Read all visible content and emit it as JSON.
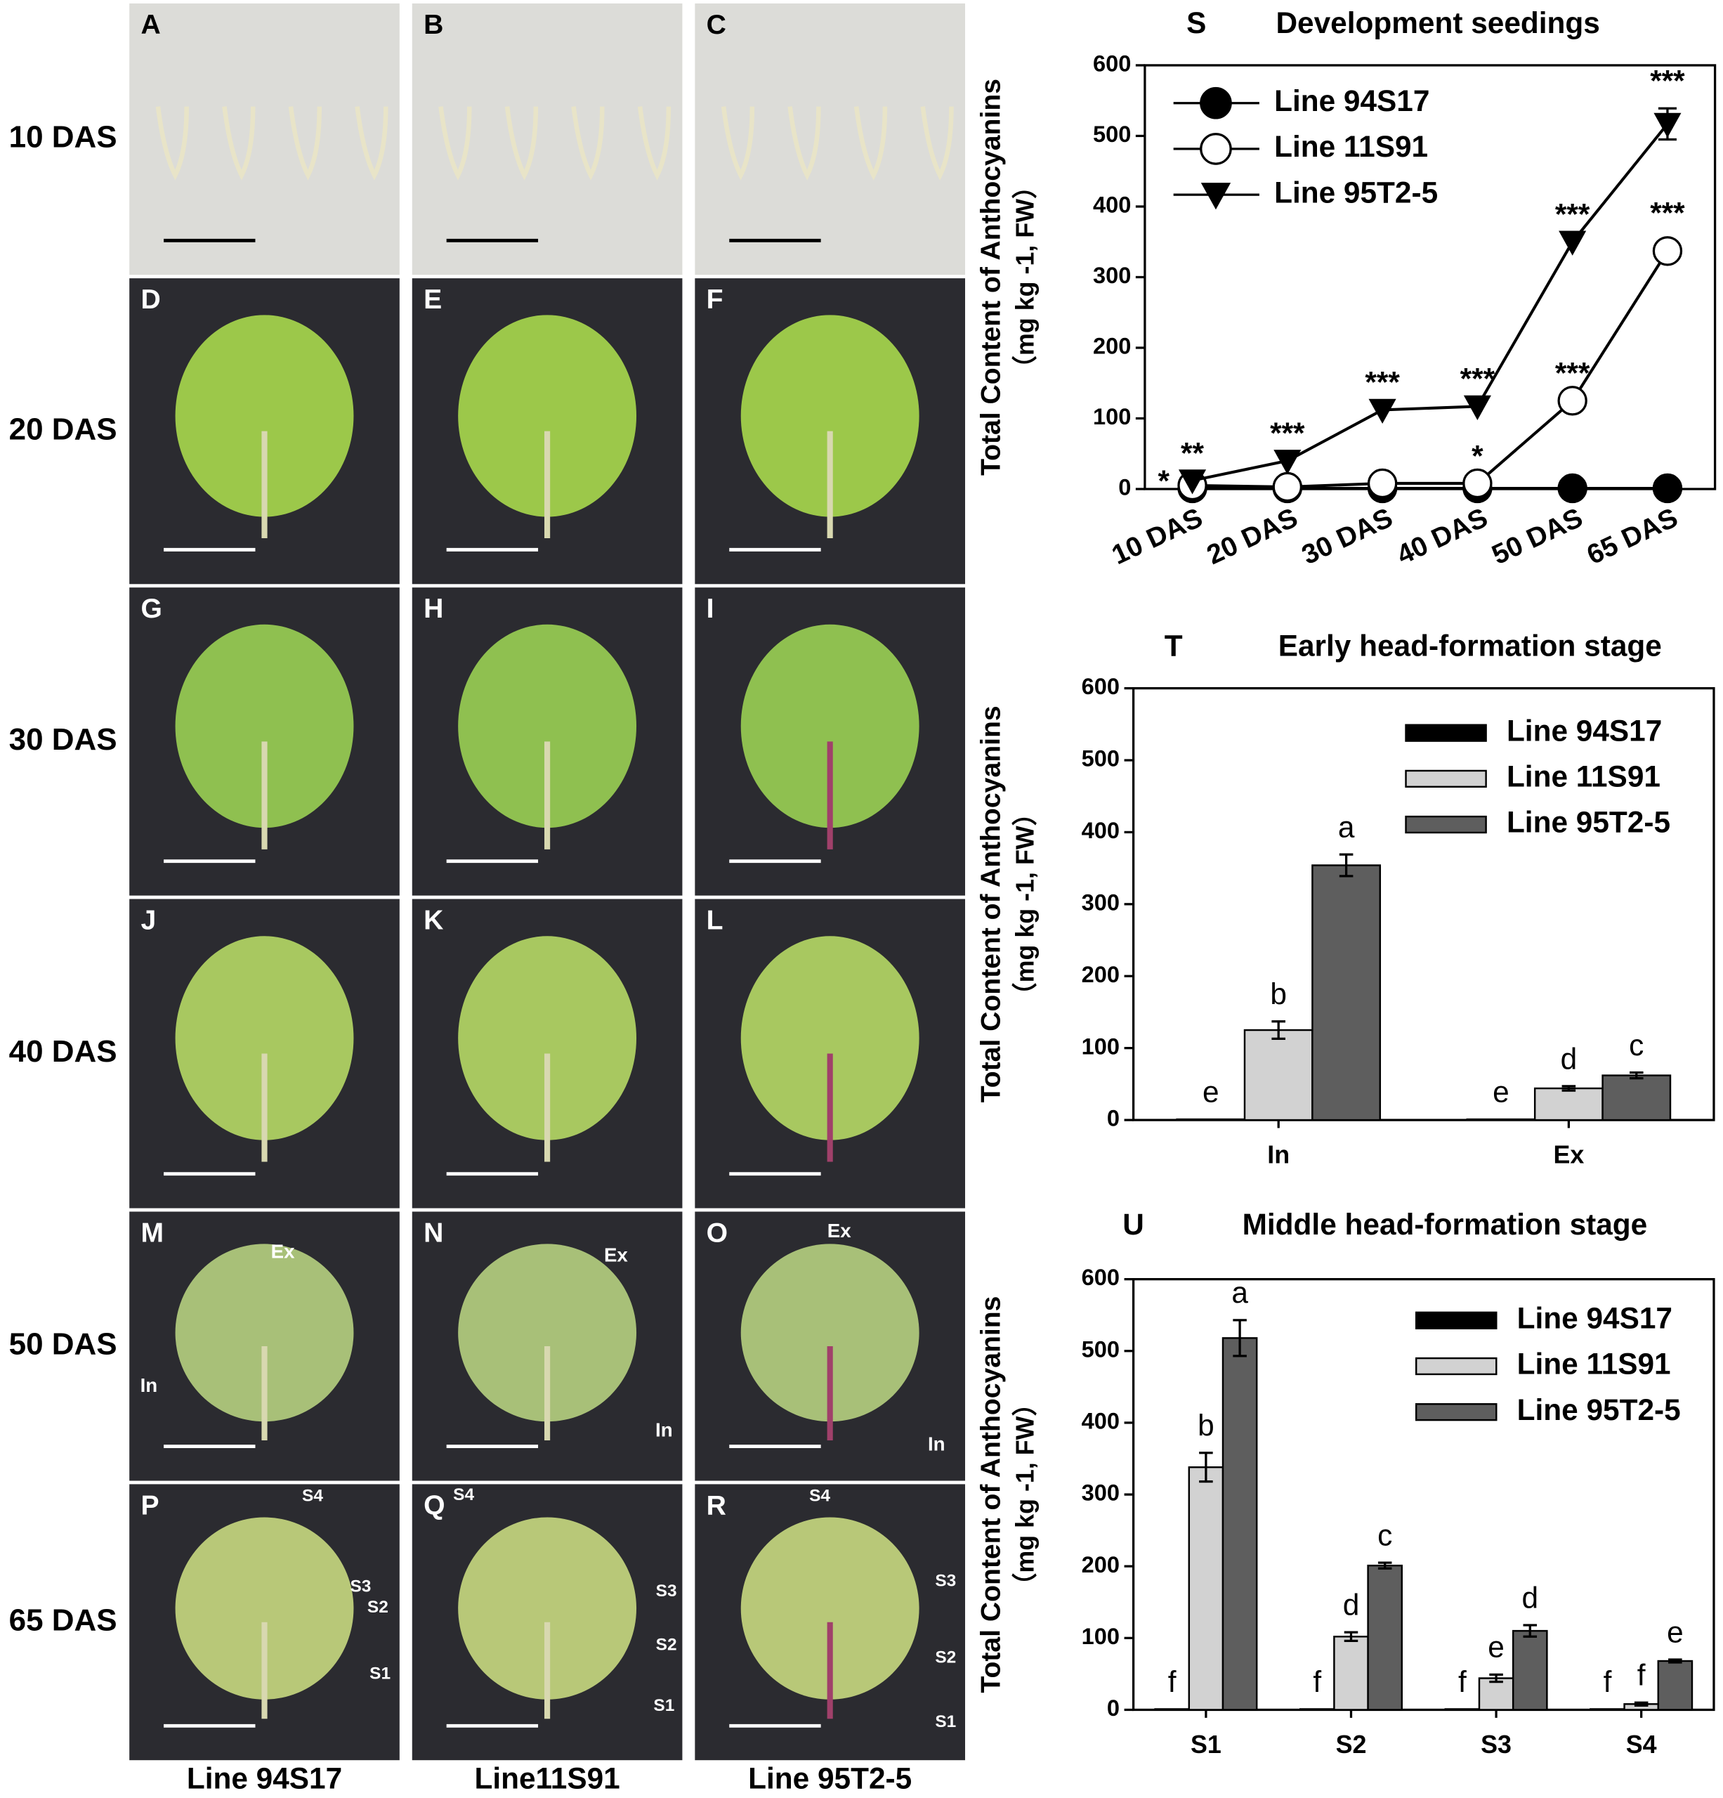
{
  "photos": {
    "rows": [
      "10 DAS",
      "20 DAS",
      "30 DAS",
      "40 DAS",
      "50 DAS",
      "65 DAS"
    ],
    "columns": [
      "Line 94S17",
      "Line11S91",
      "Line 95T2-5"
    ],
    "panels": [
      {
        "letter": "A",
        "annotations": []
      },
      {
        "letter": "B",
        "annotations": []
      },
      {
        "letter": "C",
        "annotations": []
      },
      {
        "letter": "D",
        "annotations": []
      },
      {
        "letter": "E",
        "annotations": []
      },
      {
        "letter": "F",
        "annotations": []
      },
      {
        "letter": "G",
        "annotations": []
      },
      {
        "letter": "H",
        "annotations": []
      },
      {
        "letter": "I",
        "annotations": []
      },
      {
        "letter": "J",
        "annotations": []
      },
      {
        "letter": "K",
        "annotations": []
      },
      {
        "letter": "L",
        "annotations": []
      },
      {
        "letter": "M",
        "annotations": [
          "Ex",
          "In"
        ]
      },
      {
        "letter": "N",
        "annotations": [
          "Ex",
          "In"
        ]
      },
      {
        "letter": "O",
        "annotations": [
          "Ex",
          "In"
        ]
      },
      {
        "letter": "P",
        "annotations": [
          "S4",
          "S3",
          "S2",
          "S1"
        ]
      },
      {
        "letter": "Q",
        "annotations": [
          "S4",
          "S3",
          "S2",
          "S1"
        ]
      },
      {
        "letter": "R",
        "annotations": [
          "S4",
          "S3",
          "S2",
          "S1"
        ]
      }
    ]
  },
  "chart_data": [
    {
      "type": "line",
      "panel": "S",
      "title": "Development seedings",
      "ylabel": [
        "Total Content of Anthocyanins",
        "（mg kg -1, FW）"
      ],
      "categories": [
        "10 DAS",
        "20 DAS",
        "30 DAS",
        "40 DAS",
        "50 DAS",
        "65 DAS"
      ],
      "ylim": [
        0,
        600
      ],
      "yticks": [
        0,
        100,
        200,
        300,
        400,
        500,
        600
      ],
      "legend": "upper left",
      "series": [
        {
          "name": "Line 94S17",
          "color": "#000000",
          "marker": "filled-circle",
          "values": [
            1,
            1,
            1,
            1,
            1,
            1
          ],
          "errors": [
            0,
            0,
            0,
            0,
            0,
            0
          ],
          "significance": [
            null,
            null,
            null,
            null,
            null,
            null
          ]
        },
        {
          "name": "Line 11S91",
          "color": "#000000",
          "marker": "open-circle",
          "values": [
            5,
            3,
            8,
            8,
            125,
            337
          ],
          "errors": [
            0,
            0,
            0,
            0,
            0,
            15
          ],
          "significance": [
            "*",
            null,
            null,
            "*",
            "***",
            "***"
          ]
        },
        {
          "name": "Line 95T2-5",
          "color": "#000000",
          "marker": "down-triangle",
          "values": [
            12,
            40,
            112,
            117,
            350,
            517
          ],
          "errors": [
            0,
            0,
            0,
            0,
            0,
            22
          ],
          "significance": [
            "**",
            "***",
            "***",
            "***",
            "***",
            "***"
          ]
        }
      ]
    },
    {
      "type": "bar",
      "panel": "T",
      "title": "Early head-formation stage",
      "ylabel": [
        "Total Content of Anthocyanins",
        "（mg kg -1, FW）"
      ],
      "categories": [
        "In",
        "Ex"
      ],
      "ylim": [
        0,
        600
      ],
      "yticks": [
        0,
        100,
        200,
        300,
        400,
        500,
        600
      ],
      "legend": "upper right",
      "series": [
        {
          "name": "Line 94S17",
          "color": "#000000",
          "values": [
            1,
            1
          ],
          "errors": [
            0,
            0
          ],
          "significance": [
            "e",
            "e"
          ]
        },
        {
          "name": "Line 11S91",
          "color": "#d2d2d2",
          "values": [
            125,
            44
          ],
          "errors": [
            12,
            3
          ],
          "significance": [
            "b",
            "d"
          ]
        },
        {
          "name": "Line 95T2-5",
          "color": "#5e5e5e",
          "values": [
            354,
            62
          ],
          "errors": [
            15,
            4
          ],
          "significance": [
            "a",
            "c"
          ]
        }
      ]
    },
    {
      "type": "bar",
      "panel": "U",
      "title": "Middle head-formation stage",
      "ylabel": [
        "Total Content of Anthocyanins",
        "（mg kg -1, FW）"
      ],
      "categories": [
        "S1",
        "S2",
        "S3",
        "S4"
      ],
      "ylim": [
        0,
        600
      ],
      "yticks": [
        0,
        100,
        200,
        300,
        400,
        500,
        600
      ],
      "legend": "upper right",
      "series": [
        {
          "name": "Line 94S17",
          "color": "#000000",
          "values": [
            1,
            1,
            1,
            1
          ],
          "errors": [
            0,
            0,
            0,
            0
          ],
          "significance": [
            "f",
            "f",
            "f",
            "f"
          ]
        },
        {
          "name": "Line 11S91",
          "color": "#d2d2d2",
          "values": [
            338,
            102,
            44,
            8
          ],
          "errors": [
            20,
            6,
            5,
            2
          ],
          "significance": [
            "b",
            "d",
            "e",
            "f"
          ]
        },
        {
          "name": "Line 95T2-5",
          "color": "#5e5e5e",
          "values": [
            518,
            201,
            110,
            68
          ],
          "errors": [
            25,
            4,
            8,
            2
          ],
          "significance": [
            "a",
            "c",
            "d",
            "e"
          ]
        }
      ]
    }
  ]
}
